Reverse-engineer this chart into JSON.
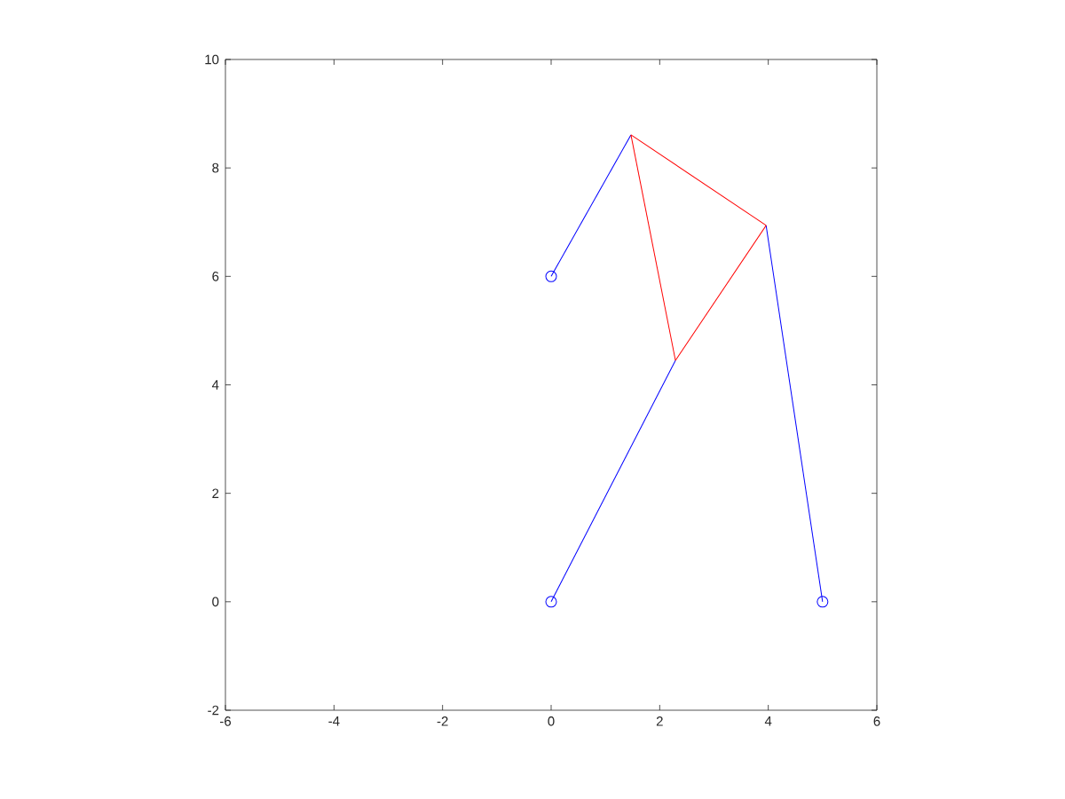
{
  "chart_data": {
    "type": "line",
    "xlim": [
      -6,
      6
    ],
    "ylim": [
      -2,
      10
    ],
    "xticks": [
      -6,
      -4,
      -2,
      0,
      2,
      4,
      6
    ],
    "yticks": [
      -2,
      0,
      2,
      4,
      6,
      8,
      10
    ],
    "series": [
      {
        "color": "#0000ff",
        "x": [
          0,
          1.47
        ],
        "values": [
          6,
          8.61
        ]
      },
      {
        "color": "#0000ff",
        "x": [
          0,
          2.29
        ],
        "values": [
          0,
          4.45
        ]
      },
      {
        "color": "#0000ff",
        "x": [
          5,
          3.96
        ],
        "values": [
          0,
          6.94
        ]
      },
      {
        "color": "#ff0000",
        "x": [
          1.47,
          3.96
        ],
        "values": [
          8.61,
          6.94
        ]
      },
      {
        "color": "#ff0000",
        "x": [
          3.96,
          2.29
        ],
        "values": [
          6.94,
          4.45
        ]
      },
      {
        "color": "#ff0000",
        "x": [
          2.29,
          1.47
        ],
        "values": [
          4.45,
          8.61
        ]
      },
      {
        "type": "scatter",
        "color": "#0000ff",
        "marker": "circle",
        "x": [
          0,
          0,
          5
        ],
        "values": [
          6,
          0,
          0
        ]
      }
    ]
  }
}
